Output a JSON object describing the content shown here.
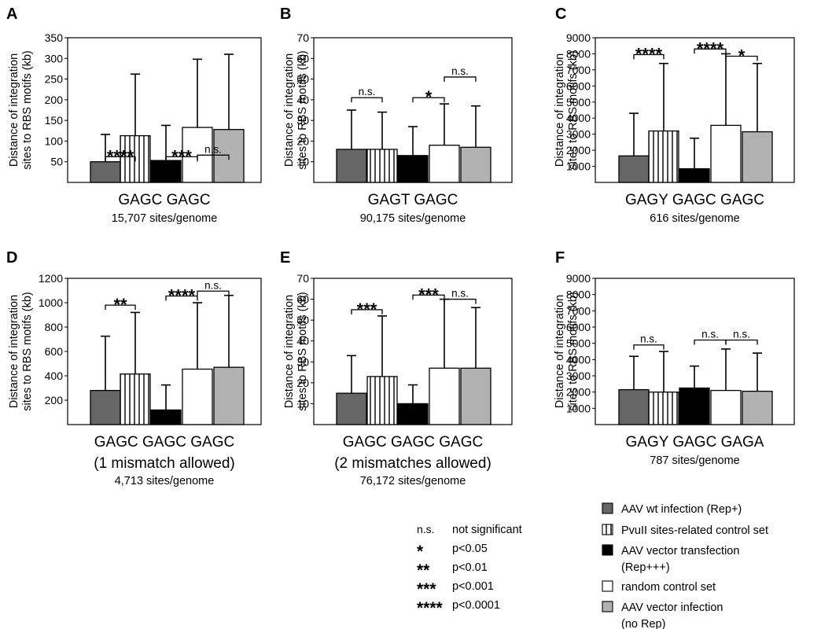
{
  "figure": {
    "ylabel_line1": "Distance of integration",
    "ylabel_line2": "sites to RBS motifs (kb)"
  },
  "colors": {
    "wt_infection": "#666666",
    "pvuii_control": "#ffffff",
    "vector_transfection": "#000000",
    "random_control": "#ffffff",
    "vector_infection": "#b2b2b2"
  },
  "chart_data": [
    {
      "type": "bar",
      "panel": "A",
      "motif": "GAGC GAGC",
      "subtitle": "",
      "sites": "15,707 sites/genome",
      "ylim": [
        0,
        350
      ],
      "yticks": [
        50,
        100,
        150,
        200,
        250,
        300,
        350
      ],
      "categories": [
        "AAV wt infection (Rep+)",
        "PvuII sites-related control set",
        "AAV vector transfection (Rep+++)",
        "random control set",
        "AAV vector infection (no Rep)"
      ],
      "values": [
        50,
        113,
        53,
        133,
        128
      ],
      "error_upper": [
        116,
        262,
        138,
        298,
        310
      ],
      "significance": [
        {
          "from": 0,
          "to": 1,
          "label": "****",
          "level": 62
        },
        {
          "from": 2,
          "to": 3,
          "label": "***",
          "level": 62
        },
        {
          "from": 3,
          "to": 4,
          "label": "n.s.",
          "level": 66
        }
      ]
    },
    {
      "type": "bar",
      "panel": "B",
      "motif": "GAGT GAGC",
      "subtitle": "",
      "sites": "90,175 sites/genome",
      "ylim": [
        0,
        70
      ],
      "yticks": [
        10,
        20,
        30,
        40,
        50,
        60,
        70
      ],
      "categories": [
        "AAV wt infection (Rep+)",
        "PvuII sites-related control set",
        "AAV vector transfection (Rep+++)",
        "random control set",
        "AAV vector infection (no Rep)"
      ],
      "values": [
        16,
        16,
        13,
        18,
        17
      ],
      "error_upper": [
        35,
        34,
        27,
        38,
        37
      ],
      "significance": [
        {
          "from": 0,
          "to": 1,
          "label": "n.s.",
          "level": 41
        },
        {
          "from": 2,
          "to": 3,
          "label": "*",
          "level": 41
        },
        {
          "from": 3,
          "to": 4,
          "label": "n.s.",
          "level": 51
        }
      ]
    },
    {
      "type": "bar",
      "panel": "C",
      "motif": "GAGY GAGC GAGC",
      "subtitle": "",
      "sites": "616 sites/genome",
      "ylim": [
        0,
        9000
      ],
      "yticks": [
        1000,
        2000,
        3000,
        4000,
        5000,
        6000,
        7000,
        8000,
        9000
      ],
      "categories": [
        "AAV wt infection (Rep+)",
        "PvuII sites-related control set",
        "AAV vector transfection (Rep+++)",
        "random control set",
        "AAV vector infection (no Rep)"
      ],
      "values": [
        1650,
        3200,
        850,
        3550,
        3150
      ],
      "error_upper": [
        4300,
        7400,
        2750,
        8000,
        7400
      ],
      "significance": [
        {
          "from": 0,
          "to": 1,
          "label": "****",
          "level": 7950
        },
        {
          "from": 2,
          "to": 3,
          "label": "****",
          "level": 8300
        },
        {
          "from": 3,
          "to": 4,
          "label": "*",
          "level": 7850
        }
      ]
    },
    {
      "type": "bar",
      "panel": "D",
      "motif": "GAGC GAGC GAGC",
      "subtitle": "(1 mismatch allowed)",
      "sites": "4,713 sites/genome",
      "ylim": [
        0,
        1200
      ],
      "yticks": [
        200,
        400,
        600,
        800,
        1000,
        1200
      ],
      "categories": [
        "AAV wt infection (Rep+)",
        "PvuII sites-related control set",
        "AAV vector transfection (Rep+++)",
        "random control set",
        "AAV vector infection (no Rep)"
      ],
      "values": [
        280,
        415,
        120,
        455,
        470
      ],
      "error_upper": [
        725,
        920,
        325,
        1000,
        1060
      ],
      "significance": [
        {
          "from": 0,
          "to": 1,
          "label": "**",
          "level": 980
        },
        {
          "from": 2,
          "to": 3,
          "label": "****",
          "level": 1055
        },
        {
          "from": 3,
          "to": 4,
          "label": "n.s.",
          "level": 1095
        }
      ]
    },
    {
      "type": "bar",
      "panel": "E",
      "motif": "GAGC GAGC GAGC",
      "subtitle": "(2 mismatches  allowed)",
      "sites": "76,172 sites/genome",
      "ylim": [
        0,
        70
      ],
      "yticks": [
        10,
        20,
        30,
        40,
        50,
        60,
        70
      ],
      "categories": [
        "AAV wt infection (Rep+)",
        "PvuII sites-related control set",
        "AAV vector transfection (Rep+++)",
        "random control set",
        "AAV vector infection (no Rep)"
      ],
      "values": [
        15,
        23,
        10,
        27,
        27
      ],
      "error_upper": [
        33,
        52,
        19,
        60,
        56
      ],
      "significance": [
        {
          "from": 0,
          "to": 1,
          "label": "***",
          "level": 55
        },
        {
          "from": 2,
          "to": 3,
          "label": "***",
          "level": 62
        },
        {
          "from": 3,
          "to": 4,
          "label": "n.s.",
          "level": 60
        }
      ]
    },
    {
      "type": "bar",
      "panel": "F",
      "motif": "GAGY GAGC GAGA",
      "subtitle": "",
      "sites": "787 sites/genome",
      "ylim": [
        0,
        9000
      ],
      "yticks": [
        1000,
        2000,
        3000,
        4000,
        5000,
        6000,
        7000,
        8000,
        9000
      ],
      "categories": [
        "AAV wt infection (Rep+)",
        "PvuII sites-related control set",
        "AAV vector transfection (Rep+++)",
        "random control set",
        "AAV vector infection (no Rep)"
      ],
      "values": [
        2150,
        2000,
        2250,
        2100,
        2050
      ],
      "error_upper": [
        4200,
        4500,
        3600,
        4650,
        4400
      ],
      "significance": [
        {
          "from": 0,
          "to": 1,
          "label": "n.s.",
          "level": 4900
        },
        {
          "from": 2,
          "to": 3,
          "label": "n.s.",
          "level": 5200
        },
        {
          "from": 3,
          "to": 4,
          "label": "n.s.",
          "level": 5200
        }
      ]
    }
  ],
  "legend": {
    "items": [
      {
        "label_lines": [
          "AAV wt infection (Rep+)"
        ],
        "fill": "#666666",
        "pattern": "solid"
      },
      {
        "label_lines": [
          "PvuII sites-related control set"
        ],
        "fill": "#ffffff",
        "pattern": "vstripes"
      },
      {
        "label_lines": [
          "AAV vector transfection",
          "(Rep+++)"
        ],
        "fill": "#000000",
        "pattern": "solid"
      },
      {
        "label_lines": [
          "random control set"
        ],
        "fill": "#ffffff",
        "pattern": "solid"
      },
      {
        "label_lines": [
          "AAV vector infection",
          "(no Rep)"
        ],
        "fill": "#b2b2b2",
        "pattern": "solid"
      }
    ]
  },
  "significance_key": [
    {
      "symbol": "n.s.",
      "meaning": "not significant"
    },
    {
      "symbol": "*",
      "meaning": "p<0.05"
    },
    {
      "symbol": "**",
      "meaning": "p<0.01"
    },
    {
      "symbol": "***",
      "meaning": "p<0.001"
    },
    {
      "symbol": "****",
      "meaning": "p<0.0001"
    }
  ]
}
